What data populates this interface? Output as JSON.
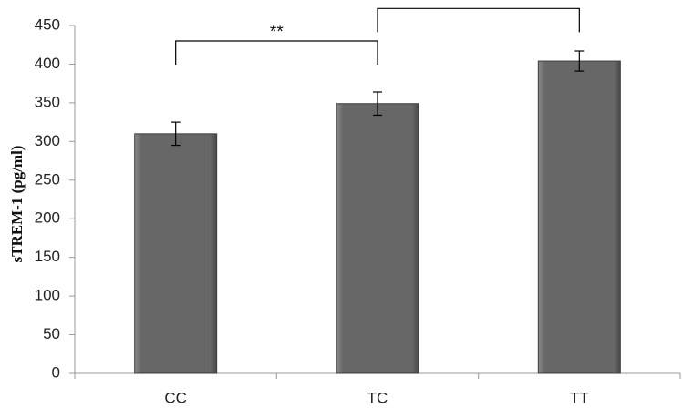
{
  "chart_data": {
    "type": "bar",
    "categories": [
      "CC",
      "TC",
      "TT"
    ],
    "values": [
      310,
      349,
      404
    ],
    "error": [
      15,
      15,
      13
    ],
    "ylabel": "sTREM-1 (pg/ml)",
    "xlabel": "",
    "ylim": [
      0,
      450
    ],
    "yticks": [
      0,
      50,
      100,
      150,
      200,
      250,
      300,
      350,
      400,
      450
    ],
    "grid": false,
    "bar_color": "#6b6b6b",
    "significance": [
      {
        "from": "CC",
        "to": "TC",
        "label": "**",
        "y": 430
      },
      {
        "from": "TC",
        "to": "TT",
        "label": "*",
        "y": 472
      }
    ]
  }
}
